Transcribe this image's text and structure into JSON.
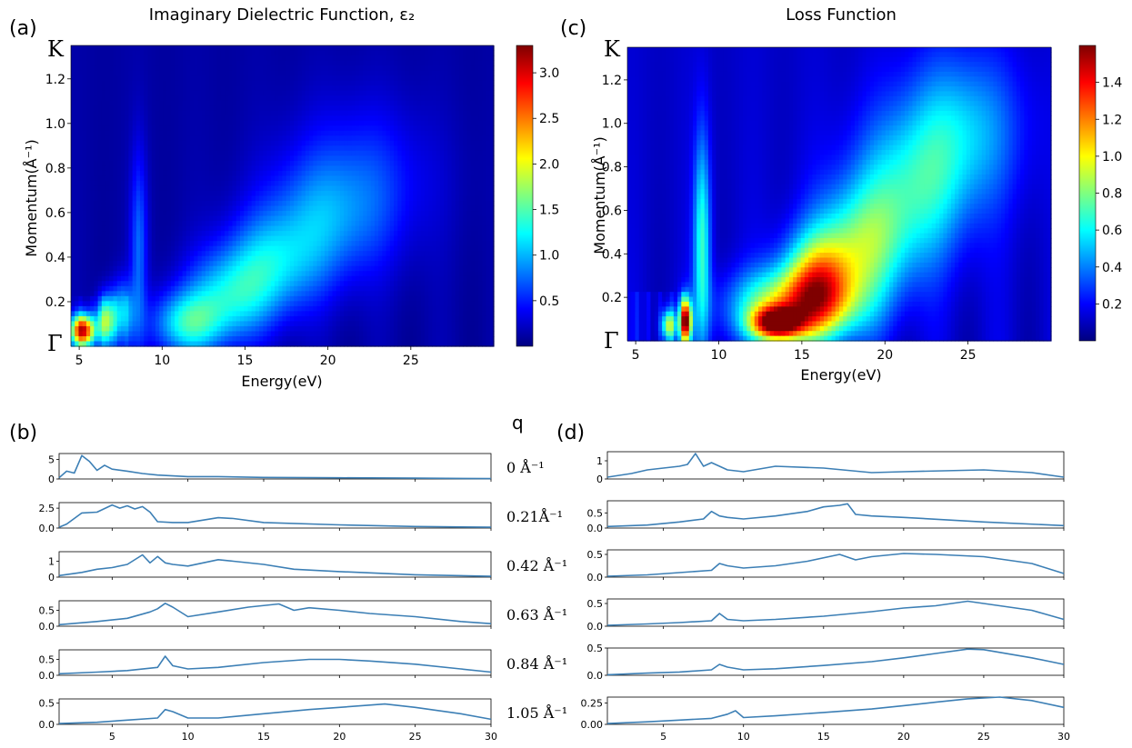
{
  "labels": {
    "panel_a": "(a)",
    "panel_b": "(b)",
    "panel_c": "(c)",
    "panel_d": "(d)",
    "q_header": "q",
    "title_a": "Imaginary Dielectric Function, ε₂",
    "title_c": "Loss Function",
    "ylabel": "Momentum(Å⁻¹)",
    "xlabel": "Energy(eV)",
    "k_point": "K",
    "gamma_point": "Γ",
    "q_values": [
      "0 Å⁻¹",
      "0.21Å⁻¹",
      "0.42 Å⁻¹",
      "0.63 Å⁻¹",
      "0.84 Å⁻¹",
      "1.05 Å⁻¹"
    ]
  },
  "colors": {
    "line": "#3c7fb5",
    "jet": [
      "#00007f",
      "#0000ff",
      "#007fff",
      "#00ffff",
      "#7fff7f",
      "#ffff00",
      "#ff7f00",
      "#ff0000",
      "#7f0000"
    ]
  },
  "chart_data": [
    {
      "id": "a",
      "type": "heatmap",
      "title": "Imaginary Dielectric Function, ε₂",
      "xlabel": "Energy(eV)",
      "ylabel": "Momentum(Å⁻¹)",
      "xlim": [
        4.5,
        30
      ],
      "ylim": [
        0,
        1.35
      ],
      "xticks": [
        5,
        10,
        15,
        20,
        25
      ],
      "yticks": [
        0.2,
        0.4,
        0.6,
        0.8,
        1.0,
        1.2
      ],
      "colorbar_ticks": [
        0.5,
        1.0,
        1.5,
        2.0,
        2.5,
        3.0
      ],
      "vmin": 0,
      "vmax": 3.3,
      "features": [
        {
          "e": 5.2,
          "q": 0.07,
          "se": 0.5,
          "sq": 0.05,
          "amp": 3.0
        },
        {
          "e": 6.6,
          "q": 0.11,
          "se": 0.4,
          "sq": 0.08,
          "amp": 1.6
        },
        {
          "e": 7.6,
          "q": 0.15,
          "se": 0.5,
          "sq": 0.1,
          "amp": 0.9
        },
        {
          "e": 8.6,
          "q": 0.45,
          "se": 0.35,
          "sq": 0.3,
          "amp": 0.6
        },
        {
          "e": 11.5,
          "q": 0.1,
          "se": 1.5,
          "sq": 0.1,
          "amp": 1.1
        },
        {
          "e": 14.0,
          "q": 0.22,
          "se": 1.8,
          "sq": 0.14,
          "amp": 0.9
        },
        {
          "e": 16.5,
          "q": 0.36,
          "se": 2.0,
          "sq": 0.16,
          "amp": 0.8
        },
        {
          "e": 19.5,
          "q": 0.55,
          "se": 2.5,
          "sq": 0.2,
          "amp": 0.6
        },
        {
          "e": 22.0,
          "q": 0.75,
          "se": 3.0,
          "sq": 0.25,
          "amp": 0.45
        }
      ]
    },
    {
      "id": "c",
      "type": "heatmap",
      "title": "Loss Function",
      "xlabel": "Energy(eV)",
      "ylabel": "Momentum(Å⁻¹)",
      "xlim": [
        4.5,
        30
      ],
      "ylim": [
        0,
        1.35
      ],
      "xticks": [
        5,
        10,
        15,
        20,
        25
      ],
      "yticks": [
        0.2,
        0.4,
        0.6,
        0.8,
        1.0,
        1.2
      ],
      "colorbar_ticks": [
        0.2,
        0.4,
        0.6,
        0.8,
        1.0,
        1.2,
        1.4
      ],
      "vmin": 0,
      "vmax": 1.6,
      "features": [
        {
          "e": 8.0,
          "q": 0.09,
          "se": 0.25,
          "sq": 0.07,
          "amp": 1.5
        },
        {
          "e": 7.0,
          "q": 0.07,
          "se": 0.3,
          "sq": 0.05,
          "amp": 0.8
        },
        {
          "e": 9.0,
          "q": 0.45,
          "se": 0.35,
          "sq": 0.35,
          "amp": 0.55
        },
        {
          "e": 13.5,
          "q": 0.08,
          "se": 1.0,
          "sq": 0.05,
          "amp": 1.2
        },
        {
          "e": 14.5,
          "q": 0.15,
          "se": 2.5,
          "sq": 0.12,
          "amp": 0.9
        },
        {
          "e": 16.0,
          "q": 0.28,
          "se": 1.5,
          "sq": 0.15,
          "amp": 0.75
        },
        {
          "e": 18.5,
          "q": 0.42,
          "se": 2.0,
          "sq": 0.2,
          "amp": 0.55
        },
        {
          "e": 21.5,
          "q": 0.68,
          "se": 2.5,
          "sq": 0.25,
          "amp": 0.45
        },
        {
          "e": 24.5,
          "q": 0.98,
          "se": 2.5,
          "sq": 0.25,
          "amp": 0.38
        }
      ]
    },
    {
      "id": "b",
      "type": "line",
      "xlim": [
        1.5,
        30
      ],
      "xticks": [
        5,
        10,
        15,
        20,
        25,
        30
      ],
      "rows": [
        {
          "q": "0 Å⁻¹",
          "ylim": [
            0,
            6.5
          ],
          "yticks": [
            0,
            5
          ],
          "x": [
            1.5,
            2,
            2.5,
            3,
            3.5,
            4,
            4.5,
            5,
            6,
            7,
            8,
            9,
            10,
            12,
            15,
            20,
            25,
            30
          ],
          "y": [
            0.3,
            2.0,
            1.5,
            6.0,
            4.5,
            2.2,
            3.5,
            2.5,
            2.0,
            1.4,
            1.0,
            0.8,
            0.6,
            0.6,
            0.4,
            0.3,
            0.2,
            0.1
          ]
        },
        {
          "q": "0.21Å⁻¹",
          "ylim": [
            0,
            3.2
          ],
          "yticks": [
            0.0,
            2.5
          ],
          "x": [
            1.5,
            2,
            3,
            4,
            5,
            5.5,
            6,
            6.5,
            7,
            7.5,
            8,
            9,
            10,
            12,
            13,
            15,
            20,
            25,
            30
          ],
          "y": [
            0.1,
            0.5,
            1.9,
            2.0,
            2.9,
            2.5,
            2.8,
            2.4,
            2.7,
            2.0,
            0.8,
            0.7,
            0.7,
            1.3,
            1.2,
            0.7,
            0.4,
            0.2,
            0.1
          ]
        },
        {
          "q": "0.42 Å⁻¹",
          "ylim": [
            0,
            1.6
          ],
          "yticks": [
            0,
            1
          ],
          "x": [
            1.5,
            3,
            4,
            5,
            6,
            7,
            7.5,
            8,
            8.5,
            9,
            10,
            12,
            13,
            15,
            17,
            20,
            25,
            30
          ],
          "y": [
            0.1,
            0.3,
            0.5,
            0.6,
            0.8,
            1.4,
            0.9,
            1.3,
            0.9,
            0.8,
            0.7,
            1.1,
            1.0,
            0.8,
            0.5,
            0.35,
            0.15,
            0.05
          ]
        },
        {
          "q": "0.63 Å⁻¹",
          "ylim": [
            0,
            0.8
          ],
          "yticks": [
            0.0,
            0.5
          ],
          "x": [
            1.5,
            4,
            6,
            7.5,
            8,
            8.5,
            9,
            10,
            12,
            14,
            16,
            17,
            18,
            20,
            22,
            25,
            28,
            30
          ],
          "y": [
            0.05,
            0.15,
            0.25,
            0.45,
            0.55,
            0.72,
            0.6,
            0.3,
            0.45,
            0.6,
            0.7,
            0.5,
            0.58,
            0.5,
            0.4,
            0.3,
            0.15,
            0.08
          ]
        },
        {
          "q": "0.84 Å⁻¹",
          "ylim": [
            0,
            0.8
          ],
          "yticks": [
            0.0,
            0.5
          ],
          "x": [
            1.5,
            4,
            6,
            8,
            8.5,
            9,
            10,
            12,
            15,
            18,
            20,
            22,
            25,
            28,
            30
          ],
          "y": [
            0.05,
            0.1,
            0.15,
            0.25,
            0.6,
            0.3,
            0.2,
            0.25,
            0.4,
            0.5,
            0.5,
            0.45,
            0.35,
            0.2,
            0.1
          ]
        },
        {
          "q": "1.05 Å⁻¹",
          "ylim": [
            0,
            0.6
          ],
          "yticks": [
            0.0,
            0.5
          ],
          "x": [
            1.5,
            4,
            6,
            8,
            8.5,
            9,
            10,
            12,
            15,
            18,
            20,
            23,
            25,
            28,
            30
          ],
          "y": [
            0.02,
            0.05,
            0.1,
            0.15,
            0.35,
            0.3,
            0.15,
            0.15,
            0.25,
            0.35,
            0.4,
            0.48,
            0.4,
            0.25,
            0.12
          ]
        }
      ]
    },
    {
      "id": "d",
      "type": "line",
      "xlim": [
        1.5,
        30
      ],
      "xticks": [
        5,
        10,
        15,
        20,
        25,
        30
      ],
      "rows": [
        {
          "q": "0 Å⁻¹",
          "ylim": [
            0,
            1.5
          ],
          "yticks": [
            0,
            1
          ],
          "x": [
            1.5,
            3,
            4,
            5,
            6,
            6.5,
            7,
            7.5,
            8,
            9,
            10,
            12,
            15,
            18,
            20,
            25,
            28,
            30
          ],
          "y": [
            0.1,
            0.3,
            0.5,
            0.6,
            0.7,
            0.8,
            1.4,
            0.7,
            0.9,
            0.5,
            0.4,
            0.7,
            0.6,
            0.35,
            0.4,
            0.5,
            0.35,
            0.1
          ]
        },
        {
          "q": "0.21Å⁻¹",
          "ylim": [
            0,
            0.9
          ],
          "yticks": [
            0.0,
            0.5
          ],
          "x": [
            1.5,
            4,
            6,
            7.5,
            8,
            8.5,
            9,
            10,
            12,
            14,
            15,
            16,
            16.5,
            17,
            18,
            20,
            25,
            30
          ],
          "y": [
            0.05,
            0.1,
            0.2,
            0.3,
            0.55,
            0.4,
            0.35,
            0.3,
            0.4,
            0.55,
            0.7,
            0.75,
            0.8,
            0.45,
            0.4,
            0.35,
            0.2,
            0.08
          ]
        },
        {
          "q": "0.42 Å⁻¹",
          "ylim": [
            0,
            0.6
          ],
          "yticks": [
            0.0,
            0.5
          ],
          "x": [
            1.5,
            4,
            6,
            8,
            8.5,
            9,
            10,
            12,
            14,
            16,
            17,
            18,
            20,
            22,
            25,
            28,
            30
          ],
          "y": [
            0.02,
            0.05,
            0.1,
            0.15,
            0.3,
            0.25,
            0.2,
            0.25,
            0.35,
            0.5,
            0.38,
            0.45,
            0.52,
            0.5,
            0.45,
            0.3,
            0.08
          ]
        },
        {
          "q": "0.63 Å⁻¹",
          "ylim": [
            0,
            0.6
          ],
          "yticks": [
            0.0,
            0.5
          ],
          "x": [
            1.5,
            4,
            6,
            8,
            8.5,
            9,
            10,
            12,
            15,
            18,
            20,
            22,
            24,
            25,
            28,
            30
          ],
          "y": [
            0.02,
            0.05,
            0.08,
            0.12,
            0.28,
            0.15,
            0.12,
            0.15,
            0.22,
            0.32,
            0.4,
            0.45,
            0.55,
            0.5,
            0.35,
            0.15
          ]
        },
        {
          "q": "0.84 Å⁻¹",
          "ylim": [
            0,
            0.5
          ],
          "yticks": [
            0.0,
            0.5
          ],
          "x": [
            1.5,
            4,
            6,
            8,
            8.5,
            9,
            10,
            12,
            15,
            18,
            20,
            22,
            24,
            25,
            28,
            30
          ],
          "y": [
            0.01,
            0.04,
            0.06,
            0.1,
            0.2,
            0.15,
            0.1,
            0.12,
            0.18,
            0.25,
            0.32,
            0.4,
            0.48,
            0.47,
            0.32,
            0.2
          ]
        },
        {
          "q": "1.05 Å⁻¹",
          "ylim": [
            0,
            0.32
          ],
          "yticks": [
            0.0,
            0.25
          ],
          "x": [
            1.5,
            4,
            6,
            8,
            9,
            9.5,
            10,
            12,
            15,
            18,
            20,
            22,
            24,
            26,
            28,
            30
          ],
          "y": [
            0.01,
            0.03,
            0.05,
            0.07,
            0.12,
            0.16,
            0.08,
            0.1,
            0.14,
            0.18,
            0.22,
            0.26,
            0.3,
            0.32,
            0.28,
            0.2
          ]
        }
      ]
    }
  ]
}
